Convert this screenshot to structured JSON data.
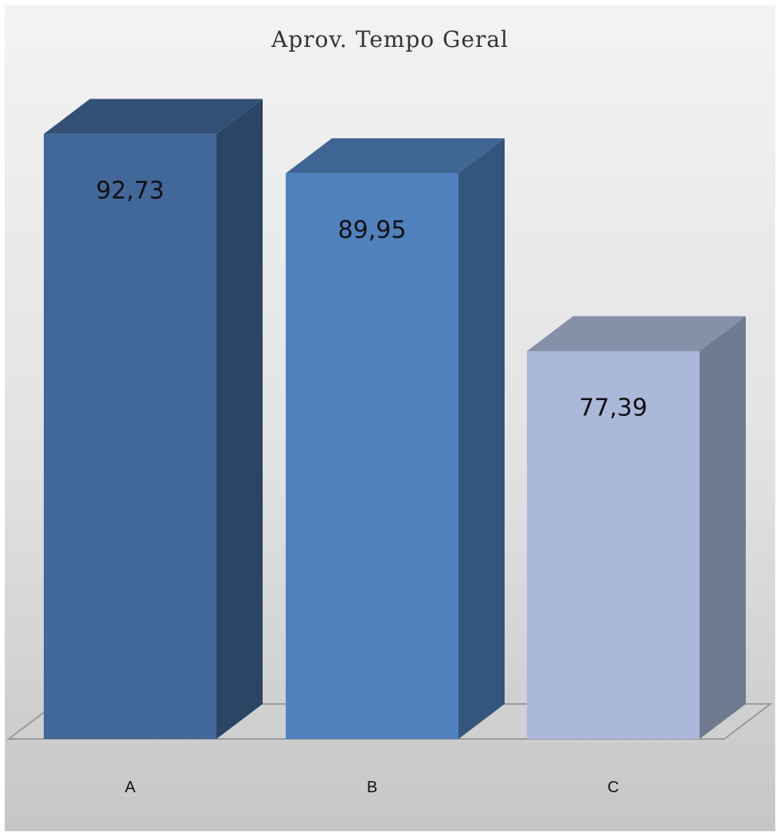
{
  "chart_data": {
    "type": "bar",
    "title": "Aprov. Tempo Geral",
    "categories": [
      "A",
      "B",
      "C"
    ],
    "values": [
      92.73,
      89.95,
      77.39
    ],
    "data_labels": [
      "92,73",
      "89,95",
      "77,39"
    ],
    "ylim": [
      50,
      100
    ],
    "grid": false,
    "legend": "none",
    "style": "3d-column",
    "colors": [
      "#416898",
      "#4f81bd",
      "#aab9d9"
    ]
  }
}
